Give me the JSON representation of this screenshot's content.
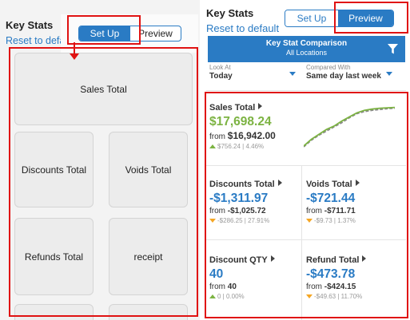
{
  "setup": {
    "title": "Key Stats",
    "reset_label": "Reset to default",
    "toggle": {
      "setup_label": "Set Up",
      "preview_label": "Preview",
      "active": "setup"
    },
    "tiles": [
      "Sales Total",
      "Discounts Total",
      "Voids Total",
      "Refunds Total",
      "receipt"
    ]
  },
  "preview": {
    "title": "Key Stats",
    "reset_label": "Reset to default",
    "toggle": {
      "setup_label": "Set Up",
      "preview_label": "Preview",
      "active": "preview"
    },
    "header": {
      "title": "Key Stat Comparison",
      "subtitle": "All Locations"
    },
    "look_at": {
      "caption": "Look At",
      "value": "Today"
    },
    "compared_with": {
      "caption": "Compared With",
      "value": "Same day last week"
    },
    "cards": {
      "sales": {
        "label": "Sales Total",
        "value": "$17,698.24",
        "from_prefix": "from ",
        "from_value": "$16,942.00",
        "change": "$756.24 | 4.46%",
        "trend": "up"
      },
      "discounts": {
        "label": "Discounts Total",
        "value": "-$1,311.97",
        "from_prefix": "from ",
        "from_value": "-$1,025.72",
        "change": "-$286.25 | 27.91%",
        "trend": "down"
      },
      "voids": {
        "label": "Voids Total",
        "value": "-$721.44",
        "from_prefix": "from ",
        "from_value": "-$711.71",
        "change": "-$9.73 | 1.37%",
        "trend": "down"
      },
      "discount_qty": {
        "label": "Discount QTY",
        "value": "40",
        "from_prefix": "from ",
        "from_value": "40",
        "change": "0 | 0.00%",
        "trend": "up"
      },
      "refund": {
        "label": "Refund Total",
        "value": "-$473.78",
        "from_prefix": "from ",
        "from_value": "-$424.15",
        "change": "-$49.63 | 11.70%",
        "trend": "down"
      }
    },
    "sparkline": {
      "current": [
        0.02,
        0.18,
        0.3,
        0.42,
        0.5,
        0.62,
        0.72,
        0.82,
        0.88,
        0.91,
        0.93,
        0.94,
        0.95
      ],
      "previous": [
        0.0,
        0.16,
        0.28,
        0.38,
        0.48,
        0.58,
        0.7,
        0.8,
        0.85,
        0.88,
        0.9,
        0.92,
        0.93
      ]
    }
  },
  "colors": {
    "accent": "#2a7bc4",
    "positive": "#7cb342",
    "negative": "#f5a623",
    "highlight": "#e01212"
  }
}
